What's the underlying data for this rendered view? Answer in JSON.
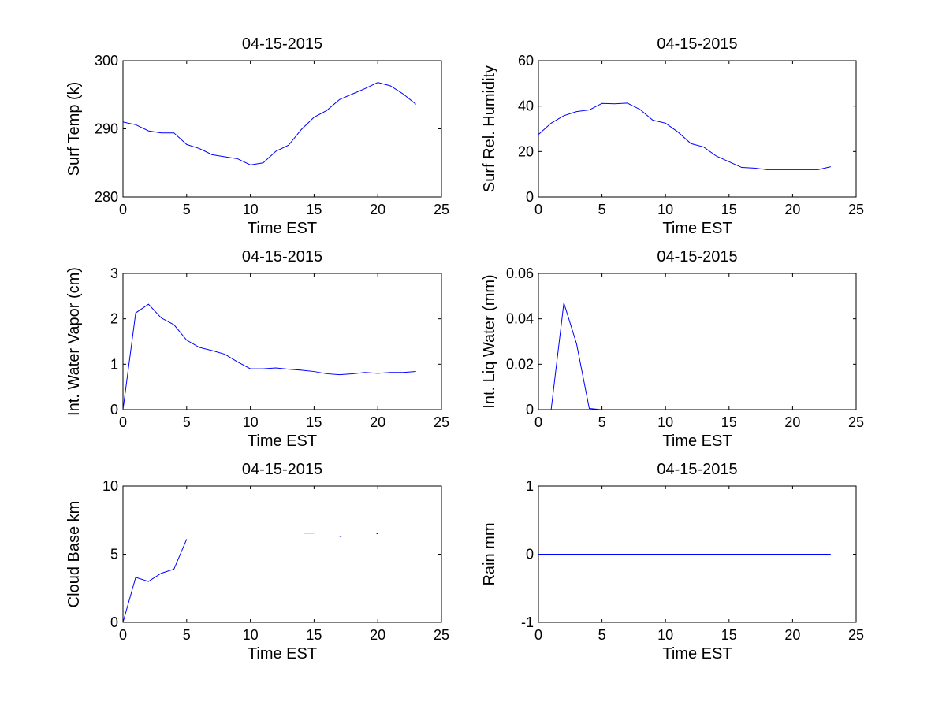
{
  "colors": {
    "line": "#0000ff",
    "axis": "#000000",
    "background": "#ffffff"
  },
  "chart_data": [
    {
      "type": "line",
      "title": "04-15-2015",
      "xlabel": "Time EST",
      "ylabel": "Surf Temp (k)",
      "xlim": [
        0,
        25
      ],
      "ylim": [
        280,
        300
      ],
      "xticks": [
        0,
        5,
        10,
        15,
        20,
        25
      ],
      "yticks": [
        280,
        290,
        300
      ],
      "series": [
        {
          "name": "Surf Temp",
          "x": [
            0,
            1,
            2,
            3,
            4,
            5,
            6,
            7,
            8,
            9,
            10,
            11,
            12,
            13,
            14,
            15,
            16,
            17,
            18,
            19,
            20,
            21,
            22,
            23
          ],
          "y": [
            291,
            290.6,
            289.7,
            289.4,
            289.4,
            287.7,
            287.1,
            286.2,
            285.9,
            285.6,
            284.7,
            285.0,
            286.7,
            287.6,
            289.9,
            291.7,
            292.7,
            294.3,
            295.1,
            295.9,
            296.8,
            296.3,
            295.1,
            293.6
          ]
        }
      ]
    },
    {
      "type": "line",
      "title": "04-15-2015",
      "xlabel": "Time EST",
      "ylabel": "Surf Rel. Humidity",
      "xlim": [
        0,
        25
      ],
      "ylim": [
        0,
        60
      ],
      "xticks": [
        0,
        5,
        10,
        15,
        20,
        25
      ],
      "yticks": [
        0,
        20,
        40,
        60
      ],
      "series": [
        {
          "name": "Surf Rel. Humidity",
          "x": [
            0,
            1,
            2,
            3,
            4,
            5,
            6,
            7,
            8,
            9,
            10,
            11,
            12,
            13,
            14,
            15,
            16,
            17,
            18,
            19,
            20,
            21,
            22,
            23
          ],
          "y": [
            27.5,
            32.5,
            35.8,
            37.6,
            38.3,
            41.2,
            41.0,
            41.3,
            38.5,
            33.8,
            32.5,
            28.5,
            23.5,
            22.0,
            18.0,
            15.5,
            13.0,
            12.7,
            12.0,
            12.0,
            12.0,
            12.0,
            12.0,
            13.3
          ]
        }
      ]
    },
    {
      "type": "line",
      "title": "04-15-2015",
      "xlabel": "Time EST",
      "ylabel": "Int. Water Vapor (cm)",
      "xlim": [
        0,
        25
      ],
      "ylim": [
        0,
        3
      ],
      "xticks": [
        0,
        5,
        10,
        15,
        20,
        25
      ],
      "yticks": [
        0,
        1,
        2,
        3
      ],
      "series": [
        {
          "name": "Int. Water Vapor",
          "x": [
            0,
            1,
            2,
            3,
            4,
            5,
            6,
            7,
            8,
            9,
            10,
            11,
            12,
            13,
            14,
            15,
            16,
            17,
            18,
            19,
            20,
            21,
            22,
            23
          ],
          "y": [
            0.0,
            2.13,
            2.32,
            2.02,
            1.87,
            1.53,
            1.37,
            1.3,
            1.22,
            1.05,
            0.9,
            0.9,
            0.92,
            0.89,
            0.87,
            0.84,
            0.79,
            0.77,
            0.79,
            0.82,
            0.8,
            0.82,
            0.82,
            0.84
          ]
        }
      ]
    },
    {
      "type": "line",
      "title": "04-15-2015",
      "xlabel": "Time EST",
      "ylabel": "Int. Liq Water (mm)",
      "xlim": [
        0,
        25
      ],
      "ylim": [
        0,
        0.06
      ],
      "xticks": [
        0,
        5,
        10,
        15,
        20,
        25
      ],
      "yticks": [
        0,
        0.02,
        0.04,
        0.06
      ],
      "ytick_labels": [
        "0",
        "0.02",
        "0.04",
        "0.06"
      ],
      "series": [
        {
          "name": "Int. Liq Water",
          "x": [
            1,
            2,
            3,
            4,
            5
          ],
          "y": [
            0.0,
            0.047,
            0.029,
            0.0005,
            0.0
          ]
        }
      ]
    },
    {
      "type": "line",
      "title": "04-15-2015",
      "xlabel": "Time EST",
      "ylabel": "Cloud Base km",
      "xlim": [
        0,
        25
      ],
      "ylim": [
        0,
        10
      ],
      "xticks": [
        0,
        5,
        10,
        15,
        20,
        25
      ],
      "yticks": [
        0,
        5,
        10
      ],
      "series": [
        {
          "name": "Cloud Base",
          "segments": [
            {
              "x": [
                0,
                1,
                2,
                3,
                4,
                5
              ],
              "y": [
                0.0,
                3.3,
                3.0,
                3.6,
                3.9,
                6.1
              ]
            },
            {
              "x": [
                14.2,
                15.0
              ],
              "y": [
                6.55,
                6.55
              ]
            },
            {
              "x": [
                17.0,
                17.15
              ],
              "y": [
                6.3,
                6.3
              ]
            },
            {
              "x": [
                19.9,
                20.05
              ],
              "y": [
                6.5,
                6.5
              ]
            }
          ]
        }
      ]
    },
    {
      "type": "line",
      "title": "04-15-2015",
      "xlabel": "Time EST",
      "ylabel": "Rain mm",
      "xlim": [
        0,
        25
      ],
      "ylim": [
        -1,
        1
      ],
      "xticks": [
        0,
        5,
        10,
        15,
        20,
        25
      ],
      "yticks": [
        -1,
        0,
        1
      ],
      "series": [
        {
          "name": "Rain",
          "x": [
            0,
            23
          ],
          "y": [
            0,
            0
          ]
        }
      ]
    }
  ]
}
